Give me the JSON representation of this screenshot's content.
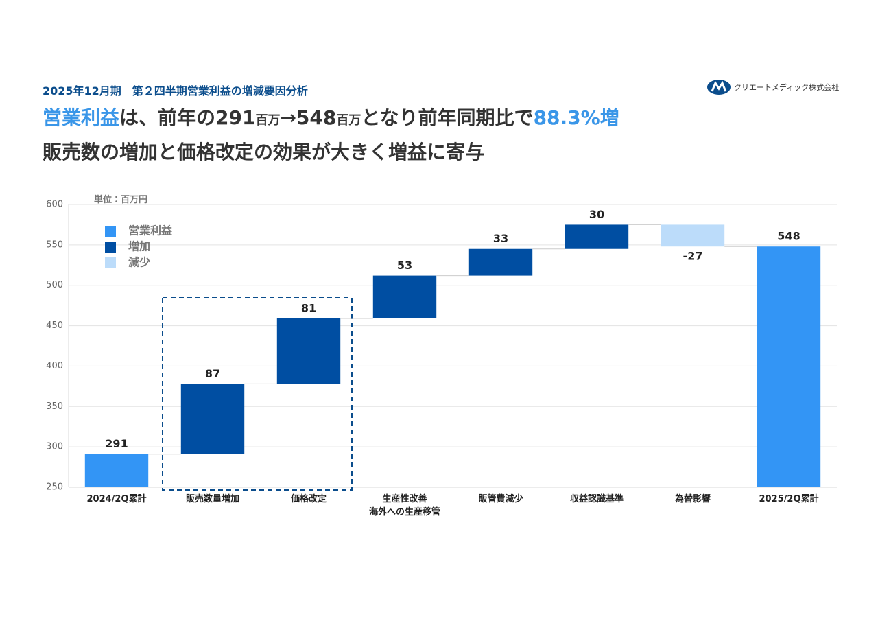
{
  "subtitle": "2025年12月期　第２四半期営業利益の増減要因分析",
  "logo": "クリエートメディック株式会社",
  "headline": [
    {
      "text": "営業利益",
      "style": "accent"
    },
    {
      "text": "は、前年の291",
      "style": "normal"
    },
    {
      "text": "百万",
      "style": "small"
    },
    {
      "text": "→548",
      "style": "normal"
    },
    {
      "text": "百万",
      "style": "small"
    },
    {
      "text": "となり前年同期比で",
      "style": "normal"
    },
    {
      "text": "88.3%増",
      "style": "accent"
    }
  ],
  "headline2": "販売数の増加と価格改定の効果が大きく増益に寄与",
  "chart_data": {
    "type": "waterfall",
    "unit_label": "単位：百万円",
    "categories": [
      "2024/2Q累計",
      "販売数量増加",
      "価格改定",
      "生産性改善\n海外への生産移管",
      "販管費減少",
      "収益認識基準",
      "為替影響",
      "2025/2Q累計"
    ],
    "values": [
      291,
      87,
      81,
      53,
      33,
      30,
      -27,
      548
    ],
    "kinds": [
      "total",
      "increase",
      "increase",
      "increase",
      "increase",
      "increase",
      "decrease",
      "total"
    ],
    "legend": [
      {
        "kind": "total",
        "name": "営業利益",
        "color": "#3395f5"
      },
      {
        "kind": "increase",
        "name": "増加",
        "color": "#004ea2"
      },
      {
        "kind": "decrease",
        "name": "減少",
        "color": "#bcdcfa"
      }
    ],
    "ylim": [
      250,
      600
    ],
    "yticks": [
      250,
      300,
      350,
      400,
      450,
      500,
      550,
      600
    ],
    "grid": true,
    "highlight_categories": [
      1,
      2
    ]
  }
}
